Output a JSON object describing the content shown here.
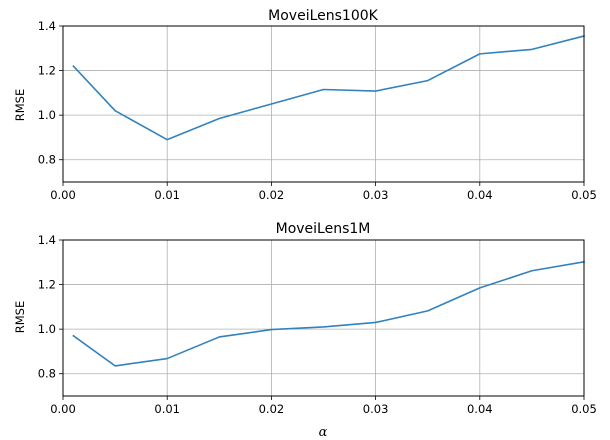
{
  "chart_data": [
    {
      "type": "line",
      "title": "MoveiLens100K",
      "xlabel": "",
      "ylabel": "RMSE",
      "xlim": [
        0.0,
        0.05
      ],
      "ylim": [
        0.7,
        1.4
      ],
      "grid": true,
      "color": "#3182bd",
      "x_ticks": [
        "0.00",
        "0.01",
        "0.02",
        "0.03",
        "0.04",
        "0.05"
      ],
      "y_ticks": [
        "0.8",
        "1.0",
        "1.2",
        "1.4"
      ],
      "x_tick_values": [
        0.0,
        0.01,
        0.02,
        0.03,
        0.04,
        0.05
      ],
      "y_tick_values": [
        0.8,
        1.0,
        1.2,
        1.4
      ],
      "series": [
        {
          "x": [
            0.001,
            0.005,
            0.01,
            0.015,
            0.02,
            0.025,
            0.03,
            0.035,
            0.04,
            0.045,
            0.05
          ],
          "y": [
            1.22,
            1.02,
            0.89,
            0.985,
            1.05,
            1.115,
            1.108,
            1.155,
            1.275,
            1.295,
            1.355
          ]
        }
      ]
    },
    {
      "type": "line",
      "title": "MoveiLens1M",
      "xlabel": "α",
      "ylabel": "RMSE",
      "xlim": [
        0.0,
        0.05
      ],
      "ylim": [
        0.7,
        1.4
      ],
      "grid": true,
      "color": "#3182bd",
      "x_ticks": [
        "0.00",
        "0.01",
        "0.02",
        "0.03",
        "0.04",
        "0.05"
      ],
      "y_ticks": [
        "0.8",
        "1.0",
        "1.2",
        "1.4"
      ],
      "x_tick_values": [
        0.0,
        0.01,
        0.02,
        0.03,
        0.04,
        0.05
      ],
      "y_tick_values": [
        0.8,
        1.0,
        1.2,
        1.4
      ],
      "series": [
        {
          "x": [
            0.001,
            0.005,
            0.01,
            0.015,
            0.02,
            0.025,
            0.03,
            0.035,
            0.04,
            0.045,
            0.05
          ],
          "y": [
            0.97,
            0.835,
            0.868,
            0.965,
            0.998,
            1.01,
            1.03,
            1.082,
            1.185,
            1.262,
            1.302
          ]
        }
      ]
    }
  ]
}
